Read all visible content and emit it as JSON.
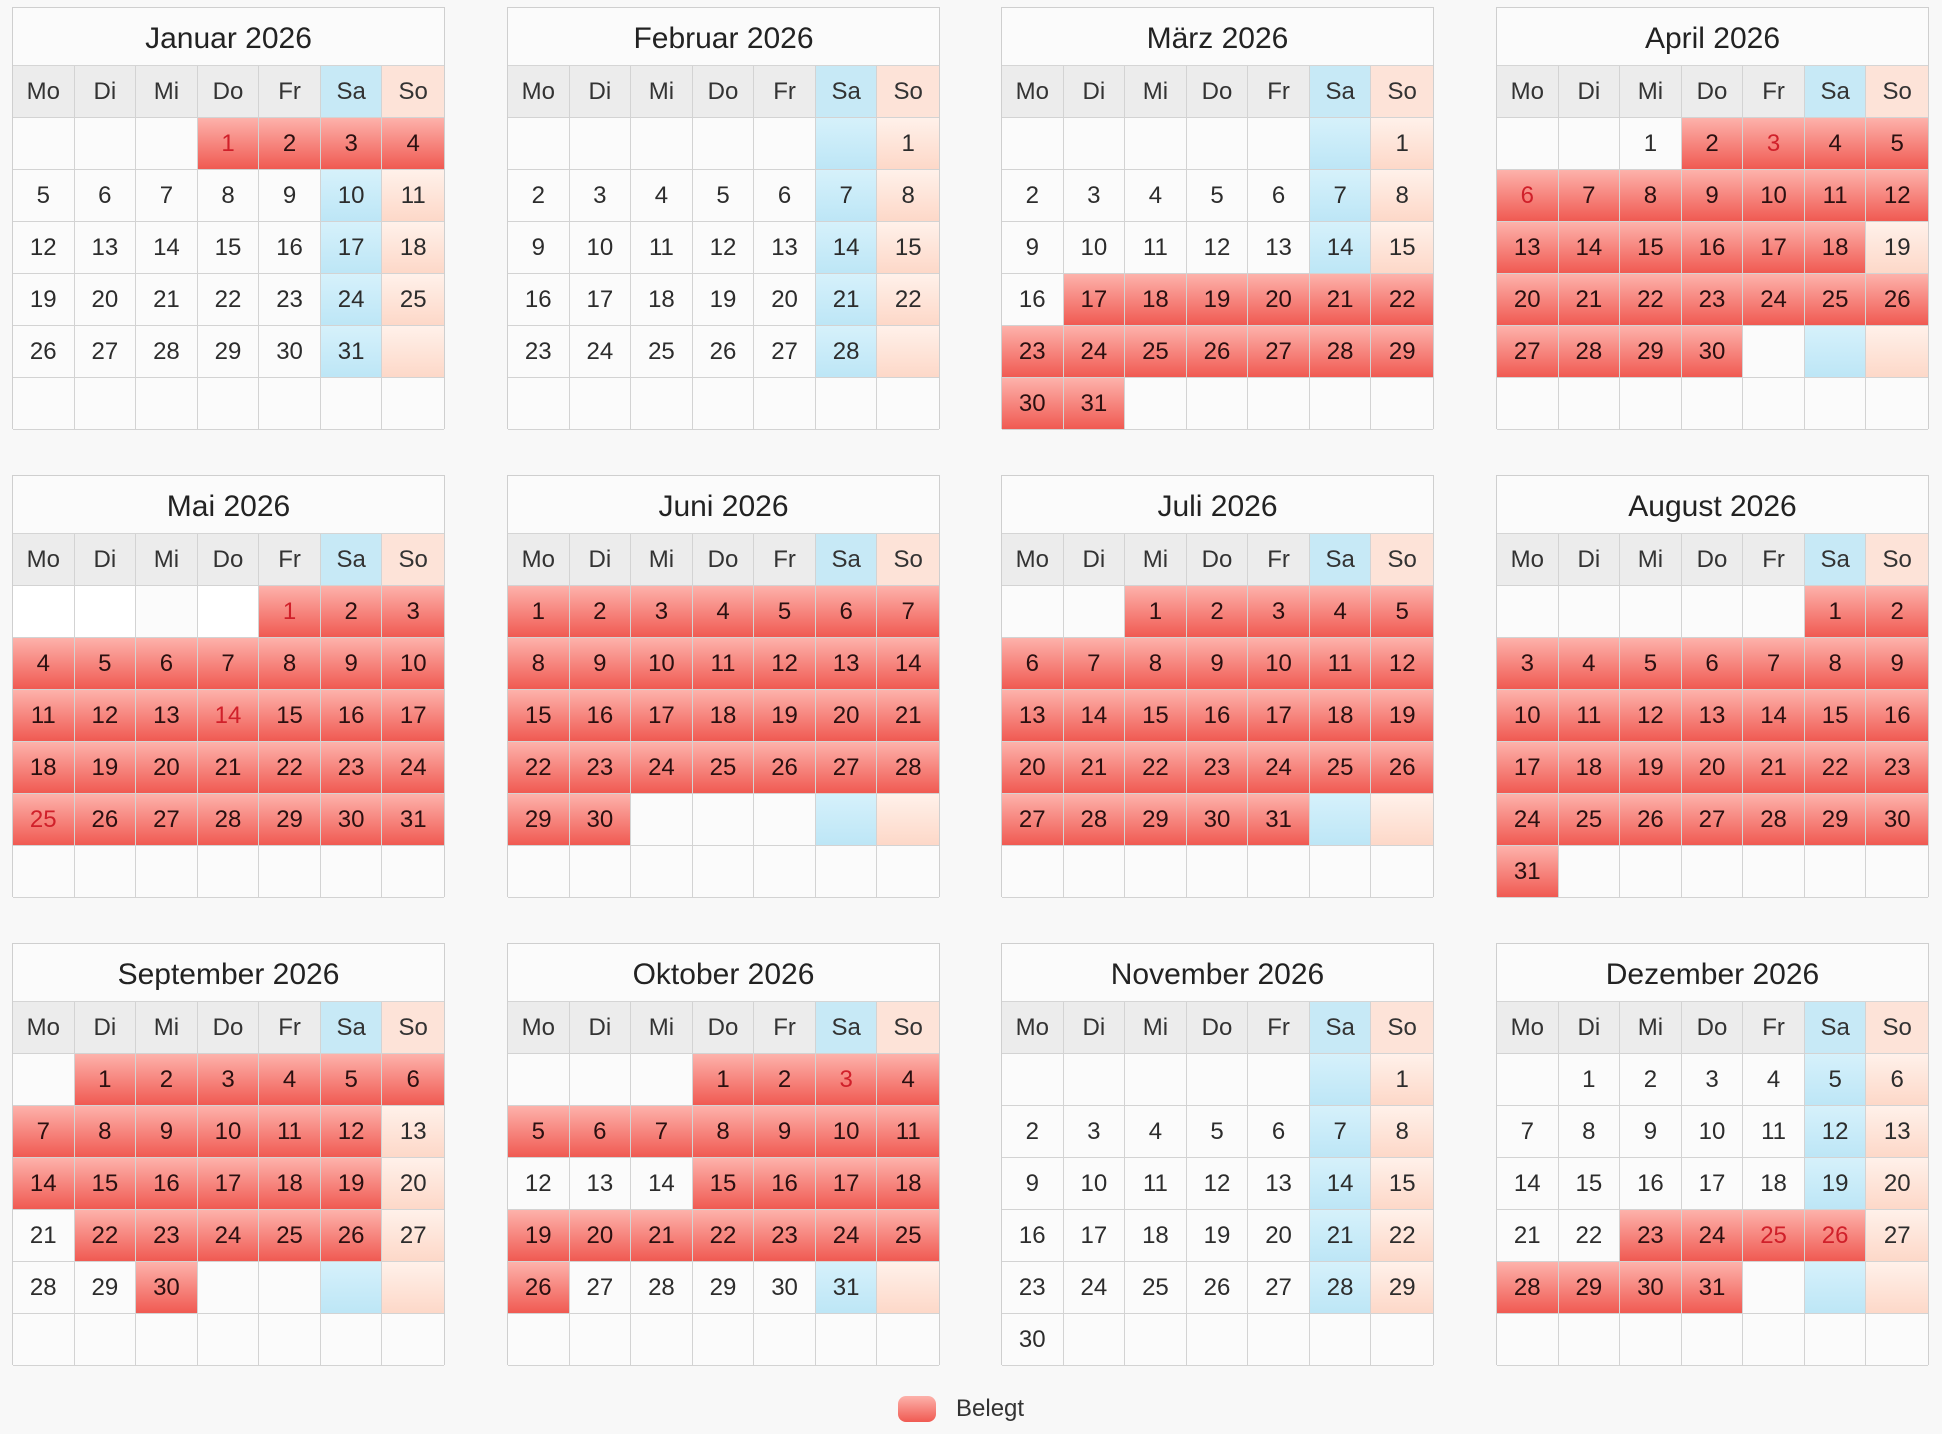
{
  "weekday_labels": [
    "Mo",
    "Di",
    "Mi",
    "Do",
    "Fr",
    "Sa",
    "So"
  ],
  "colors": {
    "booked": "#f05a52",
    "saturday": "#c7e9f6",
    "sunday": "#fde3d8",
    "highlight_text": "#d0202a"
  },
  "months": [
    {
      "title": "Januar 2026",
      "first_weekday": 3,
      "days": 31,
      "booked": [
        1,
        2,
        3,
        4
      ],
      "highlight": [
        1
      ],
      "blank": []
    },
    {
      "title": "Februar 2026",
      "first_weekday": 6,
      "days": 28,
      "booked": [],
      "highlight": [],
      "blank": []
    },
    {
      "title": "März 2026",
      "first_weekday": 6,
      "days": 31,
      "booked": [
        17,
        18,
        19,
        20,
        21,
        22,
        23,
        24,
        25,
        26,
        27,
        28,
        29,
        30,
        31
      ],
      "highlight": [],
      "blank": []
    },
    {
      "title": "April 2026",
      "first_weekday": 2,
      "days": 30,
      "booked": [
        2,
        3,
        4,
        5,
        6,
        7,
        8,
        9,
        10,
        11,
        12,
        13,
        14,
        15,
        16,
        17,
        18,
        20,
        21,
        22,
        23,
        24,
        25,
        26,
        27,
        28,
        29,
        30
      ],
      "highlight": [
        3,
        6
      ],
      "blank": []
    },
    {
      "title": "Mai 2026",
      "first_weekday": 4,
      "days": 31,
      "booked": [
        1,
        2,
        3,
        4,
        5,
        6,
        7,
        8,
        9,
        10,
        11,
        12,
        13,
        14,
        15,
        16,
        17,
        18,
        19,
        20,
        21,
        22,
        23,
        24,
        25,
        26,
        27,
        28,
        29,
        30,
        31
      ],
      "highlight": [
        1,
        14,
        25
      ],
      "blank": [
        0,
        1,
        3
      ]
    },
    {
      "title": "Juni 2026",
      "first_weekday": 0,
      "days": 30,
      "booked": [
        1,
        2,
        3,
        4,
        5,
        6,
        7,
        8,
        9,
        10,
        11,
        12,
        13,
        14,
        15,
        16,
        17,
        18,
        19,
        20,
        21,
        22,
        23,
        24,
        25,
        26,
        27,
        28,
        29,
        30
      ],
      "highlight": [],
      "blank": []
    },
    {
      "title": "Juli 2026",
      "first_weekday": 2,
      "days": 31,
      "booked": [
        1,
        2,
        3,
        4,
        5,
        6,
        7,
        8,
        9,
        10,
        11,
        12,
        13,
        14,
        15,
        16,
        17,
        18,
        19,
        20,
        21,
        22,
        23,
        24,
        25,
        26,
        27,
        28,
        29,
        30,
        31
      ],
      "highlight": [],
      "blank": []
    },
    {
      "title": "August 2026",
      "first_weekday": 5,
      "days": 31,
      "booked": [
        1,
        2,
        3,
        4,
        5,
        6,
        7,
        8,
        9,
        10,
        11,
        12,
        13,
        14,
        15,
        16,
        17,
        18,
        19,
        20,
        21,
        22,
        23,
        24,
        25,
        26,
        27,
        28,
        29,
        30,
        31
      ],
      "highlight": [],
      "blank": []
    },
    {
      "title": "September 2026",
      "first_weekday": 1,
      "days": 30,
      "booked": [
        1,
        2,
        3,
        4,
        5,
        6,
        7,
        8,
        9,
        10,
        11,
        12,
        14,
        15,
        16,
        17,
        18,
        19,
        22,
        23,
        24,
        25,
        26,
        30
      ],
      "highlight": [],
      "blank": []
    },
    {
      "title": "Oktober 2026",
      "first_weekday": 3,
      "days": 31,
      "booked": [
        1,
        2,
        3,
        4,
        5,
        6,
        7,
        8,
        9,
        10,
        11,
        15,
        16,
        17,
        18,
        19,
        20,
        21,
        22,
        23,
        24,
        25,
        26
      ],
      "highlight": [
        3
      ],
      "blank": []
    },
    {
      "title": "November 2026",
      "first_weekday": 6,
      "days": 30,
      "booked": [],
      "highlight": [],
      "blank": []
    },
    {
      "title": "Dezember 2026",
      "first_weekday": 1,
      "days": 31,
      "booked": [
        23,
        24,
        25,
        26,
        28,
        29,
        30,
        31
      ],
      "highlight": [
        25,
        26
      ],
      "blank": []
    }
  ],
  "legend": {
    "label": "Belegt"
  }
}
